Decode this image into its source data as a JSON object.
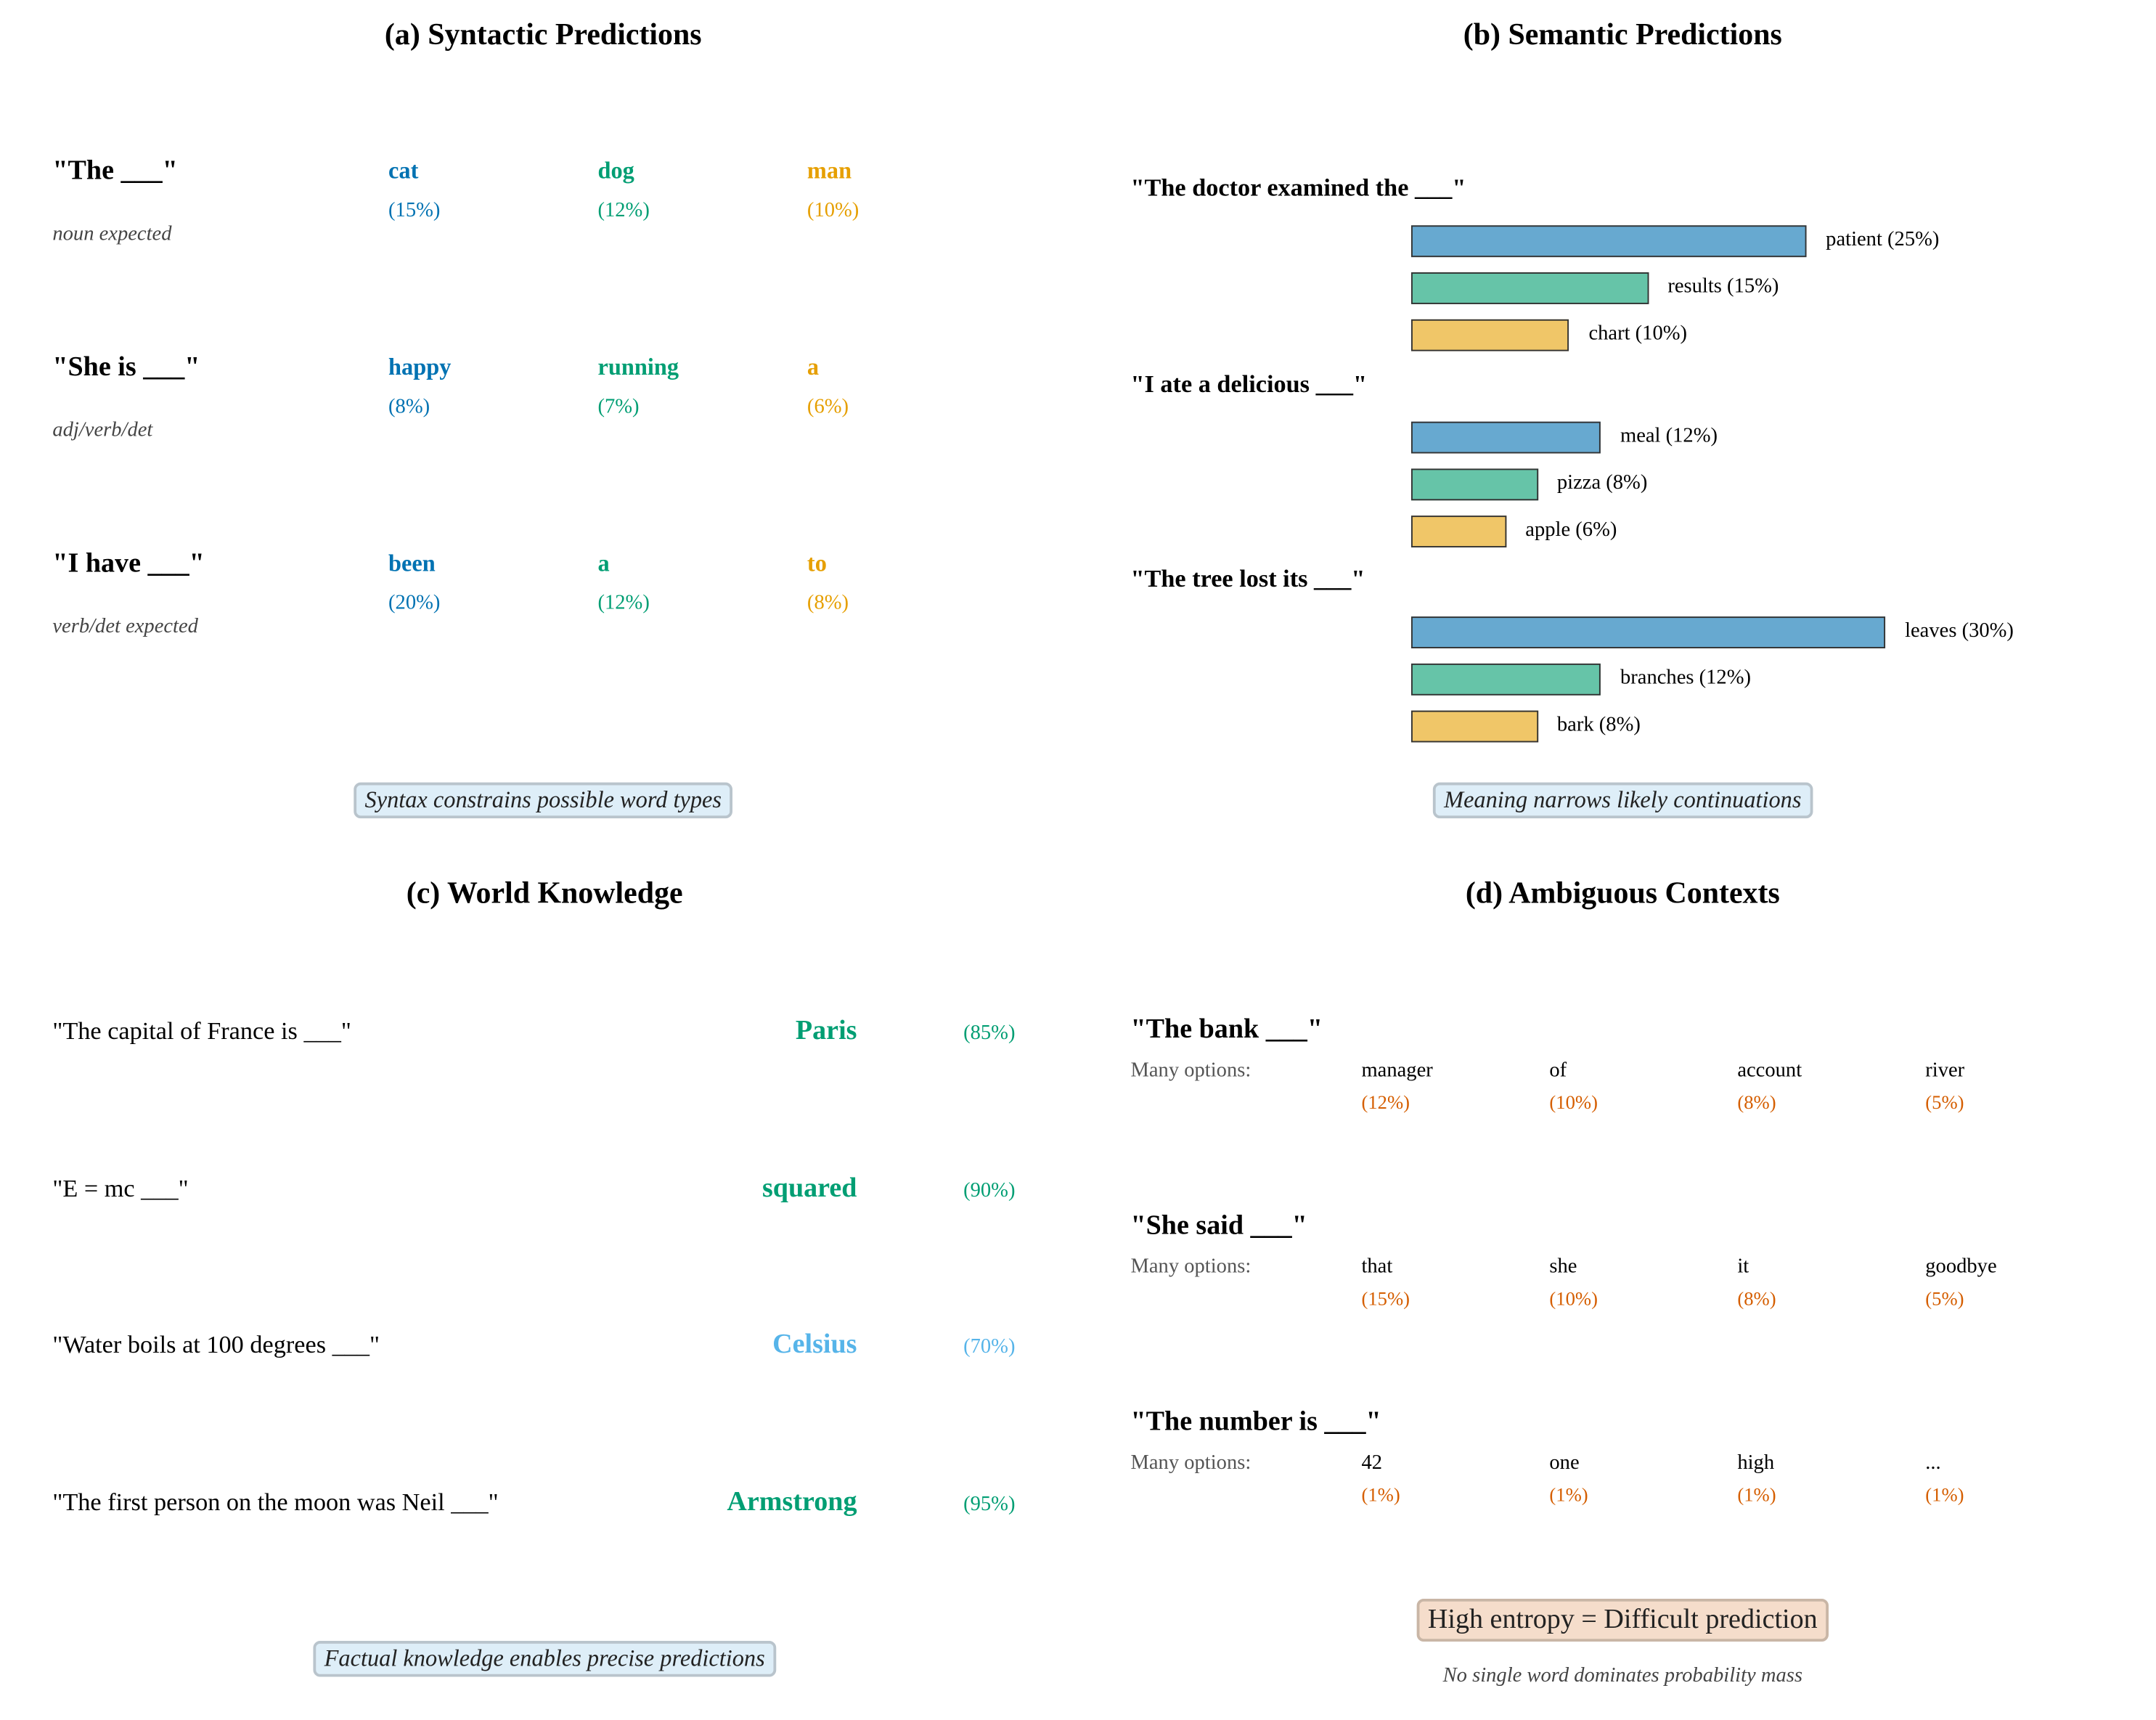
{
  "colors": {
    "blue": "#0072B2",
    "green": "#009E73",
    "orange": "#E69F00",
    "sky": "#56B4E9",
    "vermillion": "#D55E00",
    "bar_blue": "#67a9d0",
    "bar_green": "#66c4a8",
    "bar_yellow": "#f0c668"
  },
  "syntactic": {
    "title": "(a) Syntactic Predictions",
    "rows": [
      {
        "prompt": "\"The ___\"",
        "note": "noun expected",
        "preds": [
          {
            "word": "cat",
            "pct": "(15%)"
          },
          {
            "word": "dog",
            "pct": "(12%)"
          },
          {
            "word": "man",
            "pct": "(10%)"
          }
        ]
      },
      {
        "prompt": "\"She is ___\"",
        "note": "adj/verb/det",
        "preds": [
          {
            "word": "happy",
            "pct": "(8%)"
          },
          {
            "word": "running",
            "pct": "(7%)"
          },
          {
            "word": "a",
            "pct": "(6%)"
          }
        ]
      },
      {
        "prompt": "\"I have ___\"",
        "note": "verb/det expected",
        "preds": [
          {
            "word": "been",
            "pct": "(20%)"
          },
          {
            "word": "a",
            "pct": "(12%)"
          },
          {
            "word": "to",
            "pct": "(8%)"
          }
        ]
      }
    ],
    "caption": "Syntax constrains possible word types"
  },
  "semantic": {
    "title": "(b) Semantic Predictions",
    "rows": [
      {
        "prompt": "\"The doctor examined the ___\"",
        "preds": [
          {
            "label": "patient (25%)",
            "value": 25
          },
          {
            "label": "results (15%)",
            "value": 15
          },
          {
            "label": "chart (10%)",
            "value": 10
          }
        ]
      },
      {
        "prompt": "\"I ate a delicious ___\"",
        "preds": [
          {
            "label": "meal (12%)",
            "value": 12
          },
          {
            "label": "pizza (8%)",
            "value": 8
          },
          {
            "label": "apple (6%)",
            "value": 6
          }
        ]
      },
      {
        "prompt": "\"The tree lost its ___\"",
        "preds": [
          {
            "label": "leaves (30%)",
            "value": 30
          },
          {
            "label": "branches (12%)",
            "value": 12
          },
          {
            "label": "bark (8%)",
            "value": 8
          }
        ]
      }
    ],
    "caption": "Meaning narrows likely continuations"
  },
  "world": {
    "title": "(c) World Knowledge",
    "rows": [
      {
        "prompt": "\"The capital of France is ___\"",
        "answer": "Paris",
        "pct": "(85%)",
        "color": "#009E73"
      },
      {
        "prompt": "\"E = mc ___\"",
        "answer": "squared",
        "pct": "(90%)",
        "color": "#009E73"
      },
      {
        "prompt": "\"Water boils at 100 degrees ___\"",
        "answer": "Celsius",
        "pct": "(70%)",
        "color": "#56B4E9"
      },
      {
        "prompt": "\"The first person on the moon was Neil ___\"",
        "answer": "Armstrong",
        "pct": "(95%)",
        "color": "#009E73"
      }
    ],
    "caption": "Factual knowledge enables precise predictions"
  },
  "ambiguous": {
    "title": "(d) Ambiguous Contexts",
    "options_label": "Many options:",
    "rows": [
      {
        "prompt": "\"The bank ___\"",
        "preds": [
          {
            "word": "manager",
            "pct": "(12%)"
          },
          {
            "word": "of",
            "pct": "(10%)"
          },
          {
            "word": "account",
            "pct": "(8%)"
          },
          {
            "word": "river",
            "pct": "(5%)"
          }
        ]
      },
      {
        "prompt": "\"She said ___\"",
        "preds": [
          {
            "word": "that",
            "pct": "(15%)"
          },
          {
            "word": "she",
            "pct": "(10%)"
          },
          {
            "word": "it",
            "pct": "(8%)"
          },
          {
            "word": "goodbye",
            "pct": "(5%)"
          }
        ]
      },
      {
        "prompt": "\"The number is ___\"",
        "preds": [
          {
            "word": "42",
            "pct": "(1%)"
          },
          {
            "word": "one",
            "pct": "(1%)"
          },
          {
            "word": "high",
            "pct": "(1%)"
          },
          {
            "word": "...",
            "pct": "(1%)"
          }
        ]
      }
    ],
    "caption": "High entropy = Difficult prediction",
    "note": "No single word dominates probability mass"
  }
}
